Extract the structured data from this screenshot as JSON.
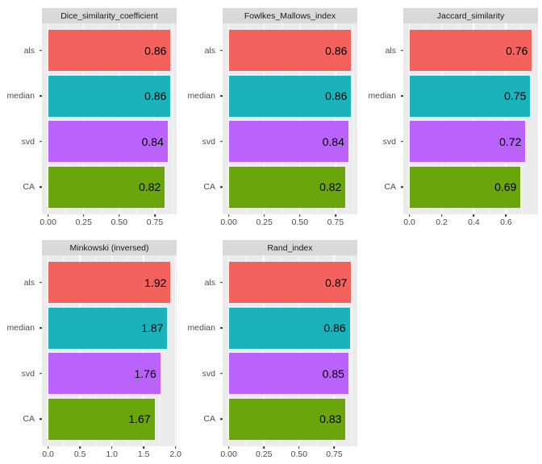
{
  "style": {
    "page_bg": "#FFFFFF",
    "panel_bg": "#EBEBEB",
    "strip_bg": "#D9D9D9",
    "grid_color": "#FFFFFF",
    "axis_text_color": "#4D4D4D",
    "tick_color": "#333333",
    "value_text_color": "#000000",
    "bar_colors": [
      "#F4625D",
      "#1BB3BB",
      "#B963FC",
      "#6AA50A"
    ]
  },
  "chart_data": {
    "type": "bar",
    "orientation": "horizontal",
    "legend": "none",
    "grid": true,
    "categories": [
      "als",
      "median",
      "svd",
      "CA"
    ],
    "charts": [
      {
        "title": "Dice_similarity_coefficient",
        "values": [
          0.86,
          0.86,
          0.84,
          0.82
        ],
        "value_labels": [
          "0.86",
          "0.86",
          "0.84",
          "0.82"
        ],
        "xticks": [
          0,
          0.25,
          0.5,
          0.75
        ],
        "xtick_labels": [
          "0.00",
          "0.25",
          "0.50",
          "0.75"
        ],
        "xlim": [
          -0.043,
          0.903
        ]
      },
      {
        "title": "Fowlkes_Mallows_index",
        "values": [
          0.86,
          0.86,
          0.84,
          0.82
        ],
        "value_labels": [
          "0.86",
          "0.86",
          "0.84",
          "0.82"
        ],
        "xticks": [
          0,
          0.25,
          0.5,
          0.75
        ],
        "xtick_labels": [
          "0.00",
          "0.25",
          "0.50",
          "0.75"
        ],
        "xlim": [
          -0.043,
          0.903
        ]
      },
      {
        "title": "Jaccard_similarity",
        "values": [
          0.76,
          0.75,
          0.72,
          0.69
        ],
        "value_labels": [
          "0.76",
          "0.75",
          "0.72",
          "0.69"
        ],
        "xticks": [
          0,
          0.2,
          0.4,
          0.6
        ],
        "xtick_labels": [
          "0.0",
          "0.2",
          "0.4",
          "0.6"
        ],
        "xlim": [
          -0.038,
          0.798
        ]
      },
      {
        "title": "Minkowski (inversed)",
        "values": [
          1.92,
          1.87,
          1.76,
          1.67
        ],
        "value_labels": [
          "1.92",
          "1.87",
          "1.76",
          "1.67"
        ],
        "xticks": [
          0,
          0.5,
          1.0,
          1.5,
          2.0
        ],
        "xtick_labels": [
          "0.0",
          "0.5",
          "1.0",
          "1.5",
          "2.0"
        ],
        "xlim": [
          -0.096,
          2.016
        ]
      },
      {
        "title": "Rand_index",
        "values": [
          0.87,
          0.86,
          0.85,
          0.83
        ],
        "value_labels": [
          "0.87",
          "0.86",
          "0.85",
          "0.83"
        ],
        "xticks": [
          0,
          0.25,
          0.5,
          0.75
        ],
        "xtick_labels": [
          "0.00",
          "0.25",
          "0.50",
          "0.75"
        ],
        "xlim": [
          -0.044,
          0.914
        ]
      }
    ]
  }
}
